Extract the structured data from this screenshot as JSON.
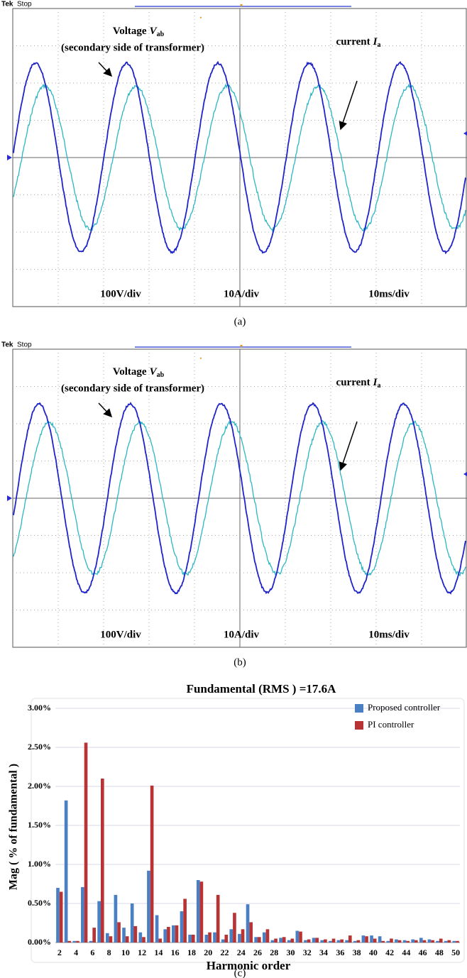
{
  "panels": [
    {
      "brand": "Tek",
      "status": "Stop",
      "voltage_label": "Voltage",
      "voltage_symbol": "V",
      "voltage_subscript": "ab",
      "voltage_note": "(secondary side of transformer)",
      "current_label": "current",
      "current_symbol": "I",
      "current_subscript": "a",
      "scale_voltage": "100V/div",
      "scale_current": "10A/div",
      "scale_time": "10ms/div",
      "caption": "(a)"
    },
    {
      "brand": "Tek",
      "status": "Stop",
      "voltage_label": "Voltage",
      "voltage_symbol": "V",
      "voltage_subscript": "ab",
      "voltage_note": "(secondary side of transformer)",
      "current_label": "current",
      "current_symbol": "I",
      "current_subscript": "a",
      "scale_voltage": "100V/div",
      "scale_current": "10A/div",
      "scale_time": "10ms/div",
      "caption": "(b)"
    }
  ],
  "chart_data": {
    "type": "bar",
    "title": "Fundamental (RMS ) =17.6A",
    "x_label": "Harmonic order",
    "y_label": "Mag ( % of fundamental )",
    "caption": "(c)",
    "categories": [
      2,
      null,
      4,
      null,
      6,
      null,
      8,
      null,
      10,
      null,
      12,
      null,
      14,
      null,
      16,
      null,
      18,
      null,
      20,
      null,
      22,
      null,
      24,
      null,
      26,
      null,
      28,
      null,
      30,
      null,
      32,
      null,
      34,
      null,
      36,
      null,
      38,
      null,
      40,
      null,
      42,
      null,
      44,
      null,
      46,
      null,
      48,
      null,
      50
    ],
    "series": [
      {
        "name": "Proposed controller",
        "color": "#4a7fc4",
        "values": [
          0.7,
          1.82,
          0.02,
          0.71,
          0.02,
          0.53,
          0.12,
          0.61,
          0.19,
          0.5,
          0.13,
          0.92,
          0.35,
          0.17,
          0.22,
          0.4,
          0.1,
          0.8,
          0.1,
          0.13,
          0.04,
          0.17,
          0.11,
          0.49,
          0.07,
          0.13,
          0.03,
          0.06,
          0.03,
          0.15,
          0.03,
          0.06,
          0.03,
          0.02,
          0.03,
          0.03,
          0.02,
          0.09,
          0.09,
          0.08,
          0.02,
          0.04,
          0.03,
          0.04,
          0.06,
          0.04,
          0.02,
          0.02,
          0.02
        ]
      },
      {
        "name": "PI controller",
        "color": "#b83434",
        "values": [
          0.65,
          0.02,
          0.02,
          2.56,
          0.19,
          2.1,
          0.08,
          0.26,
          0.08,
          0.21,
          0.07,
          2.01,
          0.05,
          0.2,
          0.22,
          0.56,
          0.1,
          0.78,
          0.13,
          0.61,
          0.1,
          0.38,
          0.17,
          0.26,
          0.07,
          0.17,
          0.05,
          0.07,
          0.05,
          0.14,
          0.04,
          0.06,
          0.04,
          0.05,
          0.04,
          0.09,
          0.03,
          0.08,
          0.05,
          0.02,
          0.05,
          0.03,
          0.02,
          0.03,
          0.03,
          0.03,
          0.05,
          0.03,
          0.02
        ]
      }
    ],
    "ylim": [
      0,
      3
    ],
    "yticks": [
      {
        "value": 0,
        "label": "0.00%"
      },
      {
        "value": 0.5,
        "label": "0.50%"
      },
      {
        "value": 1,
        "label": "1.00%"
      },
      {
        "value": 1.5,
        "label": "1.50%"
      },
      {
        "value": 2,
        "label": "2.00%"
      },
      {
        "value": 2.5,
        "label": "2.50%"
      },
      {
        "value": 3,
        "label": "3.00%"
      }
    ],
    "grid": true,
    "legend": "top-right"
  }
}
